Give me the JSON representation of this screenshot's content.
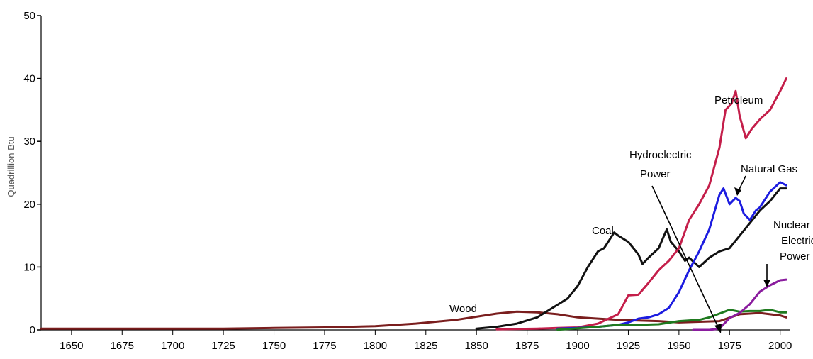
{
  "chart_data": {
    "type": "line",
    "title": "",
    "xlabel": "",
    "ylabel": "Quadrillion Btu",
    "xlim": [
      1635,
      2005
    ],
    "ylim": [
      0,
      50
    ],
    "grid": false,
    "x_ticks": [
      "1650",
      "1675",
      "1700",
      "1725",
      "1750",
      "1775",
      "1800",
      "1825",
      "1850",
      "1875",
      "1900",
      "1925",
      "1950",
      "1975",
      "2000"
    ],
    "y_ticks": [
      "0",
      "10",
      "20",
      "30",
      "40",
      "50"
    ],
    "colors": {
      "Wood": "#7a1e1e",
      "Coal": "#111111",
      "Petroleum": "#c41e4a",
      "Natural Gas": "#1c1ce0",
      "Hydroelectric Power": "#1f7a1f",
      "Nuclear Electric Power": "#8a1c9e"
    },
    "series": [
      {
        "name": "Wood",
        "x": [
          1635,
          1650,
          1675,
          1700,
          1725,
          1750,
          1775,
          1800,
          1820,
          1840,
          1850,
          1860,
          1870,
          1880,
          1890,
          1900,
          1910,
          1920,
          1930,
          1940,
          1950,
          1960,
          1970,
          1980,
          1990,
          2000,
          2003
        ],
        "y": [
          0.2,
          0.2,
          0.2,
          0.2,
          0.2,
          0.3,
          0.4,
          0.6,
          1.0,
          1.6,
          2.1,
          2.6,
          2.9,
          2.8,
          2.5,
          2.0,
          1.8,
          1.6,
          1.5,
          1.4,
          1.2,
          1.3,
          1.4,
          2.5,
          2.7,
          2.3,
          2.0
        ]
      },
      {
        "name": "Coal",
        "x": [
          1850,
          1860,
          1870,
          1880,
          1890,
          1895,
          1900,
          1905,
          1910,
          1913,
          1918,
          1920,
          1925,
          1930,
          1932,
          1935,
          1940,
          1944,
          1946,
          1950,
          1953,
          1955,
          1960,
          1965,
          1970,
          1975,
          1980,
          1985,
          1990,
          1995,
          2000,
          2003
        ],
        "y": [
          0.2,
          0.5,
          1.0,
          2.0,
          4.0,
          5.0,
          7.0,
          10.0,
          12.5,
          13.0,
          15.5,
          15.0,
          14.0,
          12.0,
          10.5,
          11.5,
          13.0,
          16.0,
          14.0,
          12.5,
          11.0,
          11.5,
          10.0,
          11.5,
          12.5,
          13.0,
          15.0,
          17.0,
          19.0,
          20.5,
          22.5,
          22.5
        ]
      },
      {
        "name": "Petroleum",
        "x": [
          1860,
          1880,
          1890,
          1900,
          1910,
          1920,
          1925,
          1930,
          1935,
          1940,
          1945,
          1950,
          1955,
          1960,
          1965,
          1970,
          1973,
          1976,
          1978,
          1980,
          1983,
          1986,
          1990,
          1995,
          2000,
          2003
        ],
        "y": [
          0.1,
          0.2,
          0.3,
          0.4,
          1.0,
          2.5,
          5.5,
          5.6,
          7.5,
          9.5,
          11.0,
          13.0,
          17.5,
          20.0,
          23.0,
          29.0,
          35.0,
          36.0,
          38.0,
          34.0,
          30.5,
          32.0,
          33.5,
          35.0,
          38.0,
          40.0
        ]
      },
      {
        "name": "Natural Gas",
        "x": [
          1890,
          1900,
          1910,
          1920,
          1925,
          1930,
          1935,
          1940,
          1945,
          1950,
          1955,
          1960,
          1965,
          1970,
          1972,
          1975,
          1978,
          1980,
          1982,
          1985,
          1988,
          1990,
          1995,
          2000,
          2003
        ],
        "y": [
          0.2,
          0.3,
          0.5,
          0.8,
          1.2,
          1.8,
          2.0,
          2.5,
          3.5,
          6.0,
          9.5,
          12.5,
          16.0,
          21.5,
          22.5,
          20.0,
          21.0,
          20.5,
          18.5,
          17.5,
          19.0,
          19.5,
          22.0,
          23.5,
          23.0
        ]
      },
      {
        "name": "Hydroelectric Power",
        "x": [
          1890,
          1900,
          1910,
          1920,
          1930,
          1940,
          1950,
          1960,
          1965,
          1970,
          1975,
          1980,
          1985,
          1990,
          1995,
          2000,
          2003
        ],
        "y": [
          0.02,
          0.25,
          0.5,
          0.8,
          0.8,
          0.9,
          1.4,
          1.6,
          2.0,
          2.6,
          3.2,
          2.9,
          3.0,
          3.0,
          3.2,
          2.8,
          2.8
        ]
      },
      {
        "name": "Nuclear Electric Power",
        "x": [
          1957,
          1965,
          1970,
          1975,
          1980,
          1985,
          1990,
          1995,
          2000,
          2003
        ],
        "y": [
          0.0,
          0.0,
          0.2,
          1.9,
          2.7,
          4.1,
          6.1,
          7.1,
          7.9,
          8.0
        ]
      }
    ],
    "annotations": [
      {
        "id": "petroleum",
        "label": "Petroleum"
      },
      {
        "id": "natural-gas",
        "label": "Natural Gas"
      },
      {
        "id": "hydro-1",
        "label": "Hydroelectric"
      },
      {
        "id": "hydro-2",
        "label": "Power"
      },
      {
        "id": "coal",
        "label": "Coal"
      },
      {
        "id": "wood",
        "label": "Wood"
      },
      {
        "id": "nuclear-1",
        "label": "Nuclear"
      },
      {
        "id": "nuclear-2",
        "label": "Electric"
      },
      {
        "id": "nuclear-3",
        "label": "Power"
      }
    ]
  }
}
